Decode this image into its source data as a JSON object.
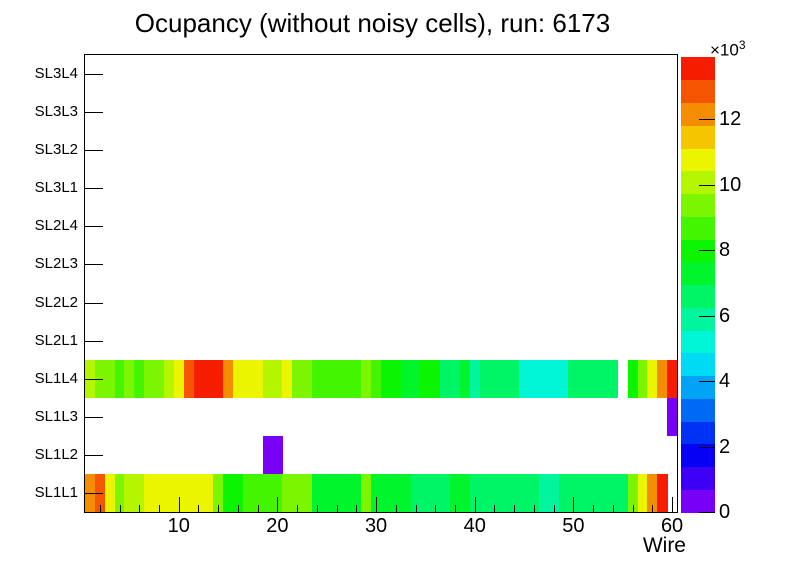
{
  "title": "Ocupancy (without noisy cells), run: 6173",
  "axes": {
    "x_label": "Wire",
    "x_major_ticks": [
      10,
      20,
      30,
      40,
      50,
      60
    ],
    "x_minor_step": 2,
    "x_range": [
      0.5,
      60.5
    ]
  },
  "colorbar": {
    "scale_base": "×10",
    "scale_exponent": "3",
    "tick_values": [
      0,
      2,
      4,
      6,
      8,
      10,
      12
    ],
    "zmax": 13.9,
    "n_bands": 20
  },
  "chart_data": {
    "type": "heatmap",
    "title": "Ocupancy (without noisy cells), run: 6173",
    "xlabel": "Wire",
    "value_units": "counts ×10³",
    "x_range": [
      0.5,
      60.5
    ],
    "n_wires": 60,
    "zmax": 13.9,
    "palette": "root-rainbow-20-bands",
    "legend_position": "right-colorbar",
    "grid": false,
    "rows_top_to_bottom": [
      {
        "label": "SL3L4",
        "values": []
      },
      {
        "label": "SL3L3",
        "values": []
      },
      {
        "label": "SL3L2",
        "values": []
      },
      {
        "label": "SL3L1",
        "values": []
      },
      {
        "label": "SL2L4",
        "values": []
      },
      {
        "label": "SL2L3",
        "values": []
      },
      {
        "label": "SL2L2",
        "values": []
      },
      {
        "label": "SL2L1",
        "values": []
      },
      {
        "label": "SL1L4",
        "values": [
          10.2,
          9.1,
          9.1,
          8.5,
          9.1,
          8.5,
          9.1,
          9.1,
          10.2,
          10.9,
          12.9,
          13.7,
          13.8,
          13.4,
          12.0,
          11.0,
          11.0,
          10.5,
          10.3,
          10.3,
          10.6,
          9.6,
          9.6,
          9.0,
          9.0,
          9.0,
          9.0,
          9.0,
          9.4,
          8.9,
          8.2,
          8.2,
          7.6,
          7.6,
          7.9,
          7.9,
          6.3,
          6.3,
          7.0,
          5.9,
          6.4,
          6.4,
          6.4,
          6.4,
          5.4,
          5.4,
          5.4,
          5.4,
          5.4,
          6.3,
          6.3,
          6.3,
          6.3,
          6.3,
          0,
          8.3,
          9.1,
          10.9,
          12.1,
          13.3
        ]
      },
      {
        "label": "SL1L3",
        "values": [
          0,
          0,
          0,
          0,
          0,
          0,
          0,
          0,
          0,
          0,
          0,
          0,
          0,
          0,
          0,
          0,
          0,
          0,
          0,
          0,
          0,
          0,
          0,
          0,
          0,
          0,
          0,
          0,
          0,
          0,
          0,
          0,
          0,
          0,
          0,
          0,
          0,
          0,
          0,
          0,
          0,
          0,
          0,
          0,
          0,
          0,
          0,
          0,
          0,
          0,
          0,
          0,
          0,
          0,
          0,
          0,
          0,
          0,
          0,
          0.6
        ]
      },
      {
        "label": "SL1L2",
        "values": [
          0,
          0,
          0,
          0,
          0,
          0,
          0,
          0,
          0,
          0,
          0,
          0,
          0,
          0,
          0,
          0,
          0,
          0,
          0.6,
          0.6,
          0,
          0,
          0,
          0,
          0,
          0,
          0,
          0,
          0,
          0,
          0,
          0,
          0,
          0,
          0,
          0,
          0,
          0,
          0,
          0,
          0,
          0,
          0,
          0,
          0,
          0,
          0,
          0,
          0,
          0,
          0,
          0,
          0,
          0,
          0,
          0,
          0,
          0,
          0,
          0
        ]
      },
      {
        "label": "SL1L1",
        "values": [
          12.0,
          12.7,
          10.9,
          9.5,
          10.2,
          10.2,
          10.8,
          10.8,
          10.8,
          11.0,
          11.0,
          11.0,
          11.0,
          9.1,
          8.1,
          8.1,
          8.6,
          8.6,
          8.6,
          8.6,
          9.1,
          9.1,
          9.1,
          7.3,
          7.5,
          7.5,
          7.5,
          7.5,
          9.1,
          7.3,
          7.3,
          7.3,
          7.6,
          6.9,
          6.9,
          6.9,
          6.9,
          7.3,
          7.3,
          6.9,
          6.9,
          6.9,
          6.9,
          6.9,
          6.9,
          6.9,
          5.8,
          5.8,
          6.9,
          6.9,
          6.9,
          6.9,
          6.9,
          6.9,
          6.9,
          9.1,
          10.7,
          12.1,
          13.3,
          0
        ]
      }
    ]
  }
}
